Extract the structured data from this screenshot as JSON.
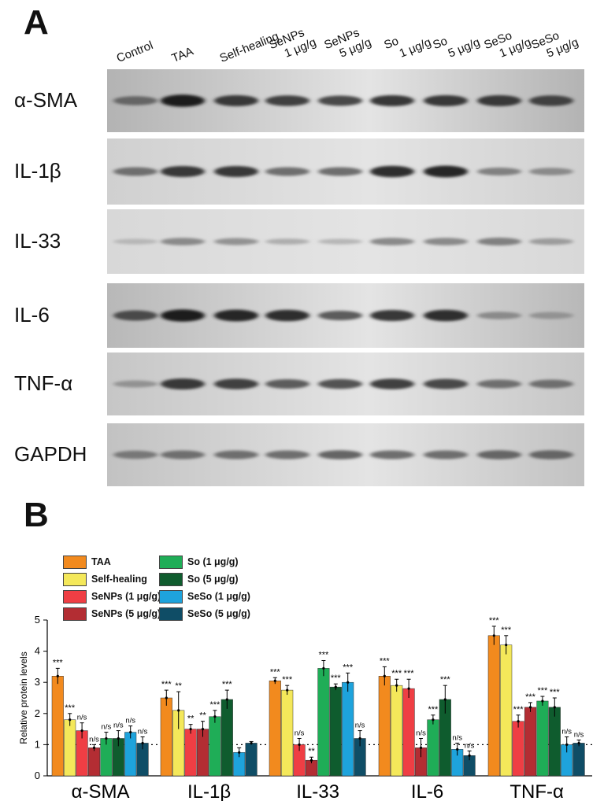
{
  "panel_a": {
    "letter": "A",
    "lanes": [
      {
        "line1": "Control",
        "line2": ""
      },
      {
        "line1": "TAA",
        "line2": ""
      },
      {
        "line1": "Self-healing",
        "line2": ""
      },
      {
        "line1": "SeNPs",
        "line2": "1 μg/g"
      },
      {
        "line1": "SeNPs",
        "line2": "5 μg/g"
      },
      {
        "line1": "So",
        "line2": "1 μg/g"
      },
      {
        "line1": "So",
        "line2": "5 μg/g"
      },
      {
        "line1": "SeSo",
        "line2": "1 μg/g"
      },
      {
        "line1": "SeSo",
        "line2": "5 μg/g"
      }
    ],
    "blots": [
      {
        "label": "α-SMA",
        "intensity": [
          0.55,
          0.95,
          0.8,
          0.75,
          0.7,
          0.8,
          0.8,
          0.8,
          0.75
        ],
        "background": "#b3b3b3"
      },
      {
        "label": "IL-1β",
        "intensity": [
          0.5,
          0.8,
          0.8,
          0.5,
          0.5,
          0.85,
          0.9,
          0.4,
          0.35
        ],
        "background": "#d0d0d0"
      },
      {
        "label": "IL-33",
        "intensity": [
          0.1,
          0.35,
          0.3,
          0.15,
          0.1,
          0.35,
          0.35,
          0.4,
          0.25
        ],
        "background": "#d8d8d8"
      },
      {
        "label": "IL-6",
        "intensity": [
          0.7,
          0.95,
          0.9,
          0.85,
          0.6,
          0.8,
          0.85,
          0.35,
          0.3
        ],
        "background": "#b8b8b8"
      },
      {
        "label": "TNF-α",
        "intensity": [
          0.3,
          0.8,
          0.75,
          0.6,
          0.65,
          0.75,
          0.7,
          0.5,
          0.5
        ],
        "background": "#c6c6c6"
      },
      {
        "label": "GAPDH",
        "intensity": [
          0.45,
          0.5,
          0.5,
          0.5,
          0.55,
          0.5,
          0.5,
          0.55,
          0.55
        ],
        "background": "#c2c2c2"
      }
    ]
  },
  "panel_b": {
    "letter": "B",
    "chart_data": {
      "type": "bar",
      "ylabel": "Relative protein levels",
      "ylim": [
        0,
        5
      ],
      "yticks": [
        "0",
        "1",
        "2",
        "3",
        "4",
        "5"
      ],
      "reference_line": 1,
      "categories": [
        "α-SMA",
        "IL-1β",
        "IL-33",
        "IL-6",
        "TNF-α"
      ],
      "series": [
        {
          "name": "TAA",
          "color": "#f28a1e",
          "values": [
            3.2,
            2.5,
            3.05,
            3.2,
            4.5
          ],
          "errors": [
            0.25,
            0.25,
            0.1,
            0.3,
            0.3
          ],
          "sig": [
            "***",
            "***",
            "***",
            "***",
            "***"
          ]
        },
        {
          "name": "Self-healing",
          "color": "#f4e85a",
          "values": [
            1.8,
            2.1,
            2.75,
            2.9,
            4.2
          ],
          "errors": [
            0.2,
            0.6,
            0.15,
            0.2,
            0.3
          ],
          "sig": [
            "***",
            "**",
            "***",
            "***",
            "***"
          ]
        },
        {
          "name": "SeNPs (1 μg/g)",
          "color": "#ef3e44",
          "values": [
            1.45,
            1.5,
            1.0,
            2.8,
            1.75
          ],
          "errors": [
            0.25,
            0.15,
            0.2,
            0.3,
            0.2
          ],
          "sig": [
            "n/s",
            "**",
            "n/s",
            "***",
            "***"
          ]
        },
        {
          "name": "SeNPs (5 μg/g)",
          "color": "#b32d33",
          "values": [
            0.9,
            1.5,
            0.5,
            0.9,
            2.2
          ],
          "errors": [
            0.1,
            0.25,
            0.1,
            0.3,
            0.15
          ],
          "sig": [
            "n/s",
            "**",
            "**",
            "n/s",
            "***"
          ]
        },
        {
          "name": "So (1 μg/g)",
          "color": "#1fad57",
          "values": [
            1.2,
            1.9,
            3.45,
            1.8,
            2.4
          ],
          "errors": [
            0.2,
            0.2,
            0.25,
            0.15,
            0.15
          ],
          "sig": [
            "n/s",
            "***",
            "***",
            "***",
            "***"
          ]
        },
        {
          "name": "So (5 μg/g)",
          "color": "#0f5c2e",
          "values": [
            1.2,
            2.45,
            2.85,
            2.45,
            2.2
          ],
          "errors": [
            0.25,
            0.3,
            0.1,
            0.45,
            0.3
          ],
          "sig": [
            "n/s",
            "***",
            "***",
            "***",
            "***"
          ]
        },
        {
          "name": "SeSo (1 μg/g)",
          "color": "#1ea3dc",
          "values": [
            1.4,
            0.75,
            3.0,
            0.85,
            1.0
          ],
          "errors": [
            0.2,
            0.15,
            0.3,
            0.2,
            0.25
          ],
          "sig": [
            "n/s",
            "",
            "***",
            "n/s",
            "n/s"
          ]
        },
        {
          "name": "SeSo (5 μg/g)",
          "color": "#0f4d66",
          "values": [
            1.05,
            1.05,
            1.2,
            0.65,
            1.05
          ],
          "errors": [
            0.2,
            0.05,
            0.25,
            0.15,
            0.1
          ],
          "sig": [
            "n/s",
            "",
            "n/s",
            "n/s",
            "n/s"
          ]
        }
      ]
    }
  }
}
